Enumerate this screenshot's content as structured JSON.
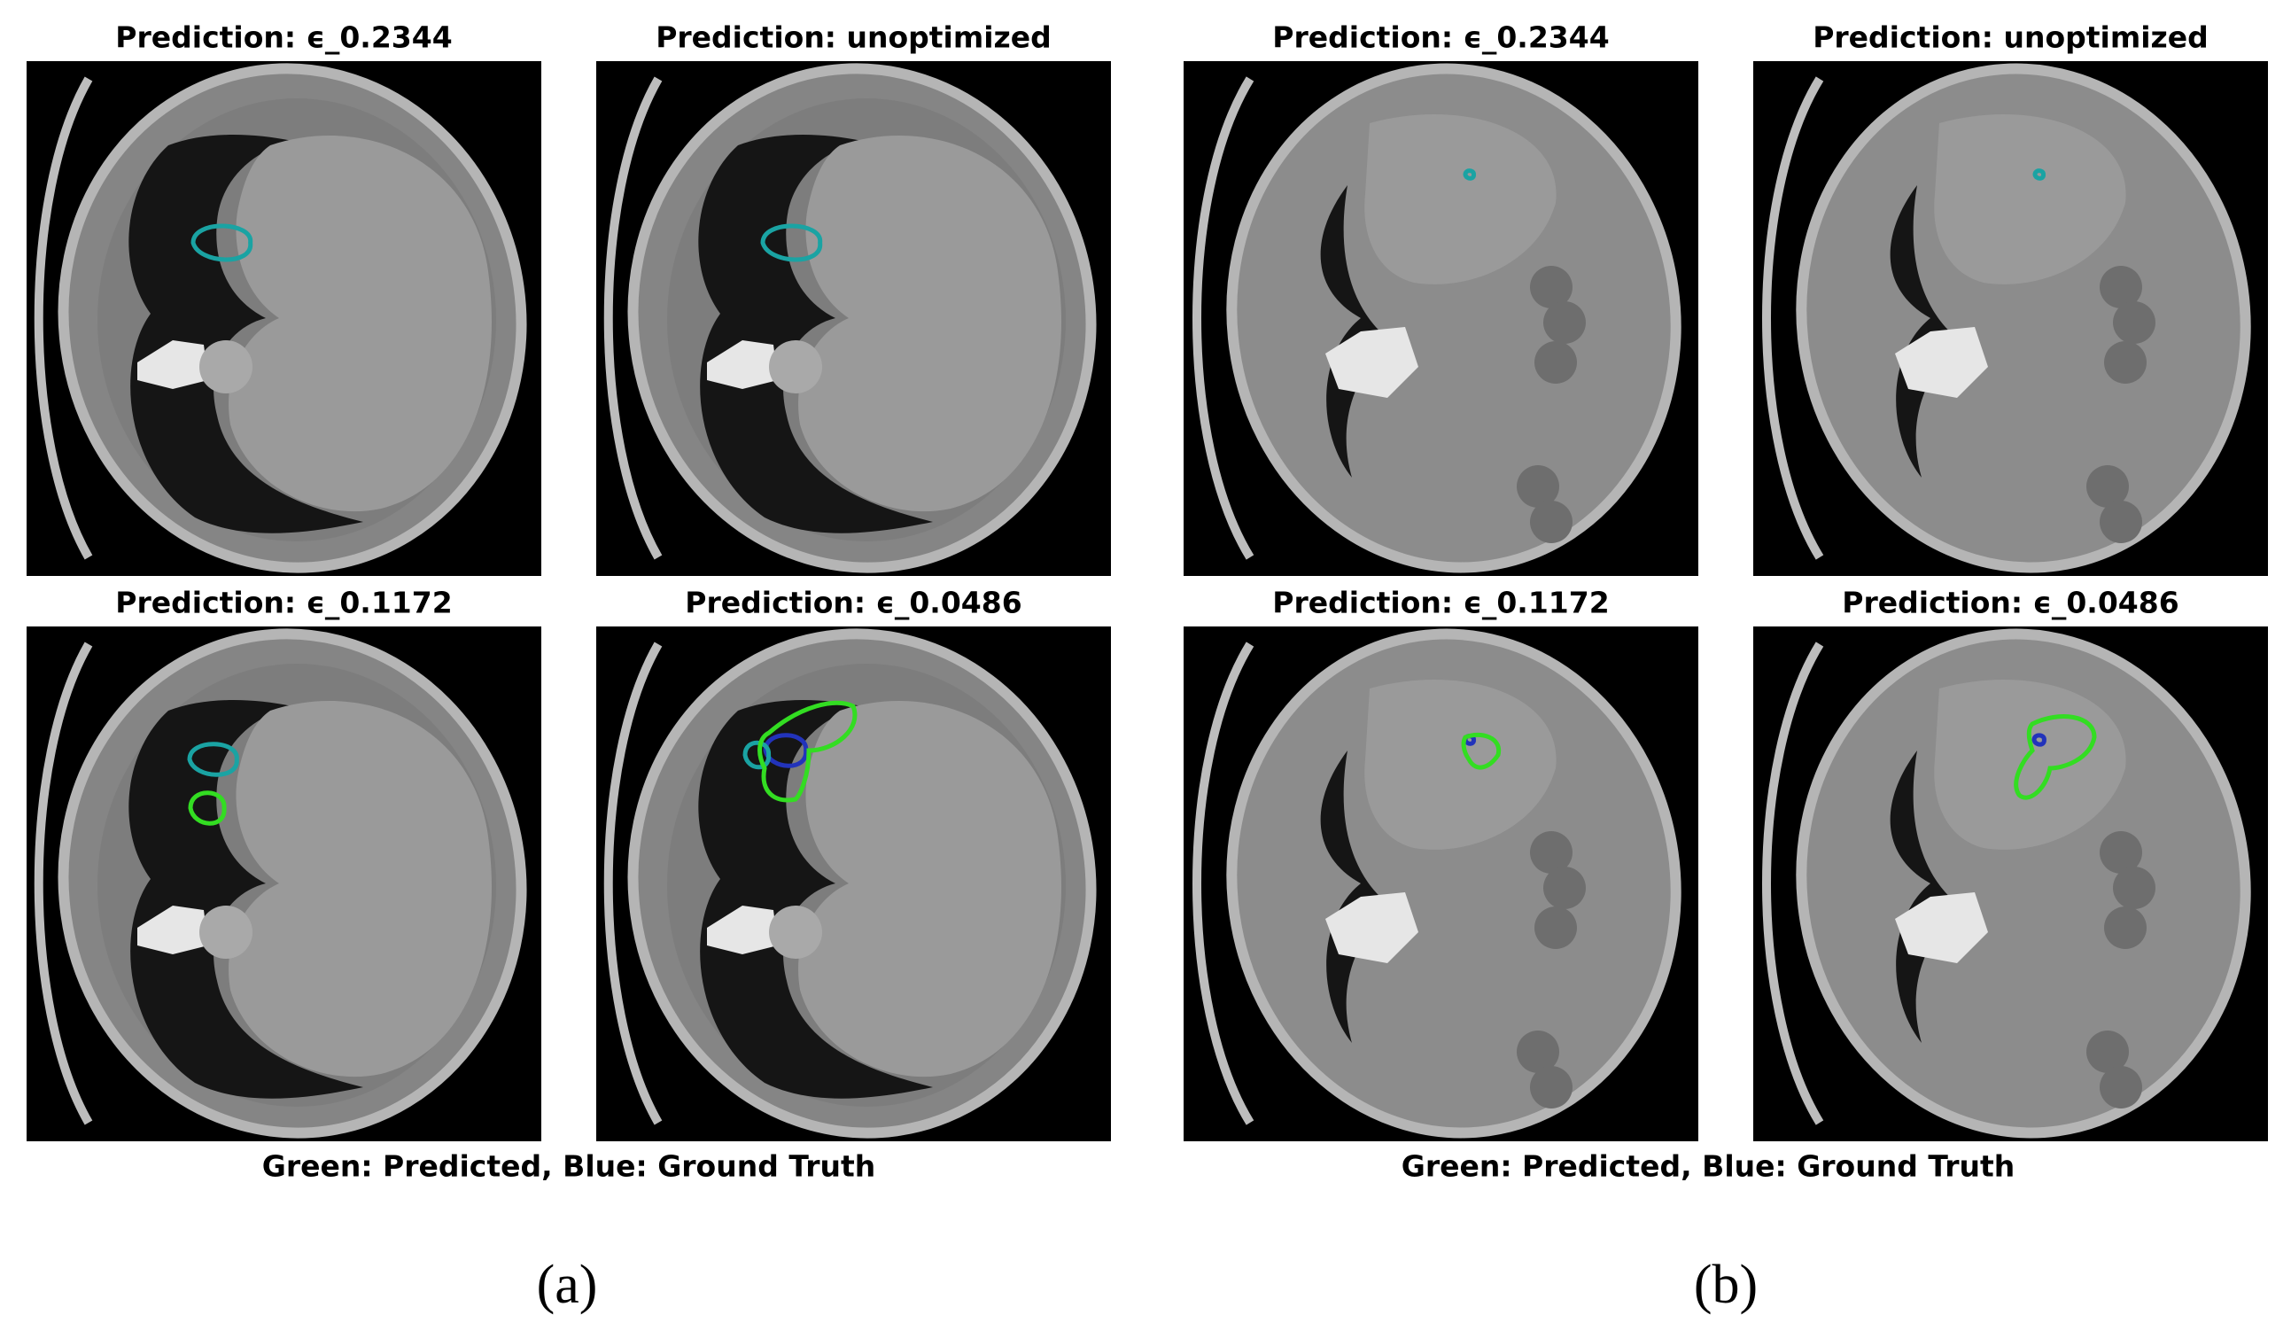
{
  "figures": [
    {
      "panels": [
        {
          "title": "Prediction: ϵ_0.2344"
        },
        {
          "title": "Prediction: unoptimized"
        },
        {
          "title": "Prediction: ϵ_0.1172"
        },
        {
          "title": "Prediction: ϵ_0.0486"
        }
      ],
      "caption": "Green: Predicted, Blue: Ground Truth",
      "label": "(a)"
    },
    {
      "panels": [
        {
          "title": "Prediction: ϵ_0.2344"
        },
        {
          "title": "Prediction: unoptimized"
        },
        {
          "title": "Prediction: ϵ_0.1172"
        },
        {
          "title": "Prediction: ϵ_0.0486"
        }
      ],
      "caption": "Green: Predicted, Blue: Ground Truth",
      "label": "(b)"
    }
  ]
}
